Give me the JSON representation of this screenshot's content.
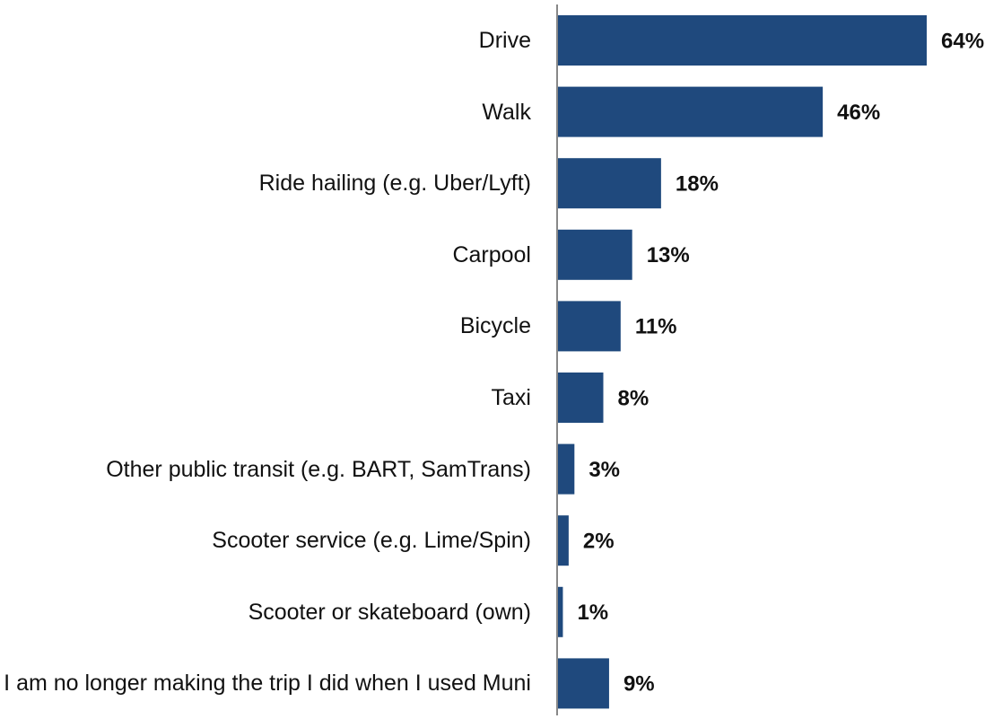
{
  "chart_data": {
    "type": "hbar",
    "categories": [
      "Drive",
      "Walk",
      "Ride hailing (e.g. Uber/Lyft)",
      "Carpool",
      "Bicycle",
      "Taxi",
      "Other public transit (e.g. BART, SamTrans)",
      "Scooter service (e.g. Lime/Spin)",
      "Scooter or skateboard (own)",
      "I am no longer making the trip I did when I used Muni"
    ],
    "values": [
      64,
      46,
      18,
      13,
      11,
      8,
      3,
      2,
      1,
      9
    ],
    "value_labels": [
      "64%",
      "46%",
      "18%",
      "13%",
      "11%",
      "8%",
      "3%",
      "2%",
      "1%",
      "9%"
    ],
    "color": "#1f497d",
    "xlim": [
      0,
      64
    ]
  }
}
